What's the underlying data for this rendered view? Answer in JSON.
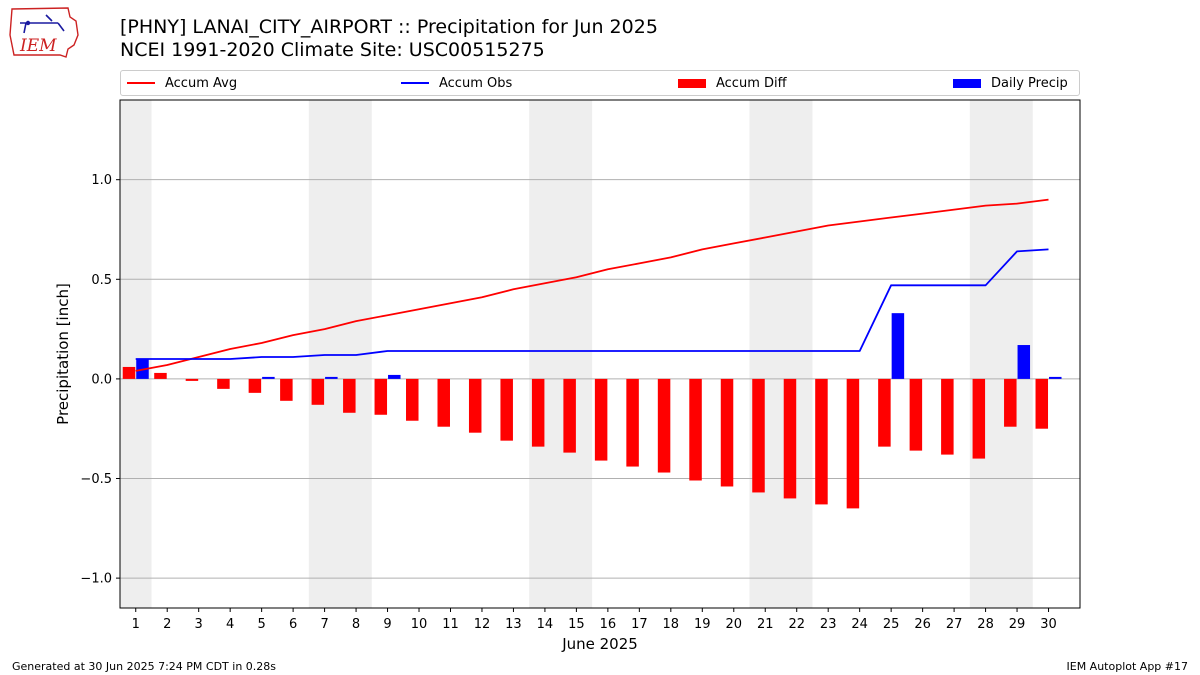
{
  "header": {
    "logo_text": "IEM",
    "title_line1": "[PHNY] LANAI_CITY_AIRPORT :: Precipitation for Jun 2025",
    "title_line2": "NCEI 1991-2020 Climate Site: USC00515275"
  },
  "legend": {
    "items": [
      {
        "label": "Accum Avg",
        "kind": "line",
        "color": "#ff0000"
      },
      {
        "label": "Accum Obs",
        "kind": "line",
        "color": "#0000ff"
      },
      {
        "label": "Accum Diff",
        "kind": "bar",
        "color": "#ff0000"
      },
      {
        "label": "Daily Precip",
        "kind": "bar",
        "color": "#0000ff"
      }
    ]
  },
  "chart_data": {
    "type": "bar",
    "xlabel": "June 2025",
    "ylabel": "Precipitation [inch]",
    "ylim": [
      -1.15,
      1.4
    ],
    "yticks": [
      1.0,
      0.5,
      0.0,
      -0.5,
      -1.0
    ],
    "ytick_labels": [
      "1.0",
      "0.5",
      "0.0",
      "−0.5",
      "−1.0"
    ],
    "grid": "horizontal",
    "weekend_shading": [
      [
        1,
        1
      ],
      [
        7,
        8
      ],
      [
        14,
        15
      ],
      [
        21,
        22
      ],
      [
        28,
        29
      ]
    ],
    "days": [
      "1",
      "2",
      "3",
      "4",
      "5",
      "6",
      "7",
      "8",
      "9",
      "10",
      "11",
      "12",
      "13",
      "14",
      "15",
      "16",
      "17",
      "18",
      "19",
      "20",
      "21",
      "22",
      "23",
      "24",
      "25",
      "26",
      "27",
      "28",
      "29",
      "30"
    ],
    "series": [
      {
        "name": "Accum Avg",
        "kind": "line",
        "color": "#ff0000",
        "values": [
          0.04,
          0.07,
          0.11,
          0.15,
          0.18,
          0.22,
          0.25,
          0.29,
          0.32,
          0.35,
          0.38,
          0.41,
          0.45,
          0.48,
          0.51,
          0.55,
          0.58,
          0.61,
          0.65,
          0.68,
          0.71,
          0.74,
          0.77,
          0.79,
          0.81,
          0.83,
          0.85,
          0.87,
          0.88,
          0.9
        ]
      },
      {
        "name": "Accum Obs",
        "kind": "line",
        "color": "#0000ff",
        "values": [
          0.1,
          0.1,
          0.1,
          0.1,
          0.11,
          0.11,
          0.12,
          0.12,
          0.14,
          0.14,
          0.14,
          0.14,
          0.14,
          0.14,
          0.14,
          0.14,
          0.14,
          0.14,
          0.14,
          0.14,
          0.14,
          0.14,
          0.14,
          0.14,
          0.47,
          0.47,
          0.47,
          0.47,
          0.64,
          0.65
        ]
      },
      {
        "name": "Accum Diff",
        "kind": "bar",
        "color": "#ff0000",
        "values": [
          0.06,
          0.03,
          -0.01,
          -0.05,
          -0.07,
          -0.11,
          -0.13,
          -0.17,
          -0.18,
          -0.21,
          -0.24,
          -0.27,
          -0.31,
          -0.34,
          -0.37,
          -0.41,
          -0.44,
          -0.47,
          -0.51,
          -0.54,
          -0.57,
          -0.6,
          -0.63,
          -0.65,
          -0.34,
          -0.36,
          -0.38,
          -0.4,
          -0.24,
          -0.25
        ]
      },
      {
        "name": "Daily Precip",
        "kind": "bar",
        "color": "#0000ff",
        "values": [
          0.1,
          0,
          0,
          0,
          0.01,
          0,
          0.01,
          0,
          0.02,
          0,
          0,
          0,
          0,
          0,
          0,
          0,
          0,
          0,
          0,
          0,
          0,
          0,
          0,
          0,
          0.33,
          0,
          0,
          0,
          0.17,
          0.01
        ]
      }
    ]
  },
  "footer": {
    "left": "Generated at 30 Jun 2025 7:24 PM CDT in 0.28s",
    "right": "IEM Autoplot App #17"
  }
}
